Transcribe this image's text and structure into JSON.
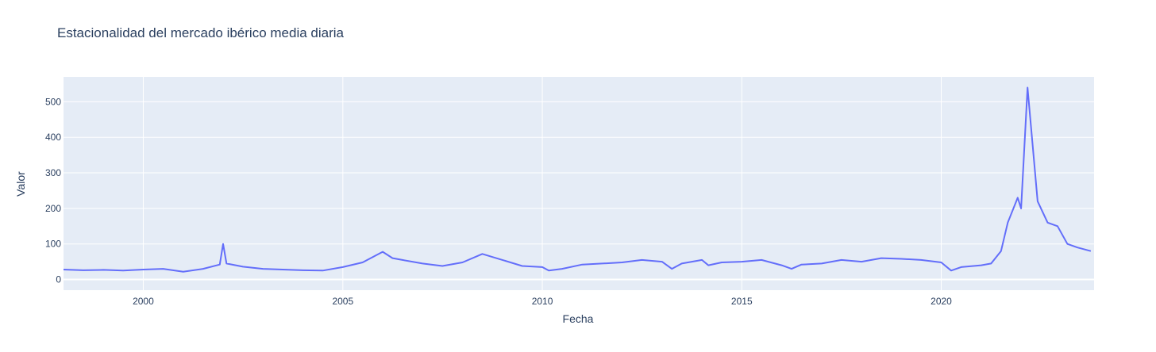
{
  "chart_data": {
    "type": "line",
    "title": "Estacionalidad del mercado ibérico media diaria",
    "xlabel": "Fecha",
    "ylabel": "Valor",
    "xlim": [
      "1998-01-01",
      "2023-10-31"
    ],
    "ylim": [
      -30,
      570
    ],
    "x_ticks": [
      "2000",
      "2005",
      "2010",
      "2015",
      "2020"
    ],
    "y_ticks": [
      0,
      100,
      200,
      300,
      400,
      500
    ],
    "grid": true,
    "legend": "none",
    "colors": {
      "line": "#636efa",
      "plot_bg": "#e5ecf6",
      "grid": "#ffffff",
      "text": "#2a3f5f"
    },
    "series": [
      {
        "x": [
          "1998-01",
          "1998-07",
          "1999-01",
          "1999-07",
          "2000-01",
          "2000-07",
          "2001-01",
          "2001-07",
          "2001-12",
          "2002-01",
          "2002-02",
          "2002-07",
          "2003-01",
          "2003-07",
          "2004-01",
          "2004-07",
          "2005-01",
          "2005-07",
          "2006-01",
          "2006-04",
          "2006-07",
          "2007-01",
          "2007-07",
          "2008-01",
          "2008-07",
          "2009-01",
          "2009-07",
          "2010-01",
          "2010-03",
          "2010-07",
          "2011-01",
          "2011-07",
          "2012-01",
          "2012-07",
          "2013-01",
          "2013-04",
          "2013-07",
          "2014-01",
          "2014-03",
          "2014-07",
          "2015-01",
          "2015-07",
          "2016-01",
          "2016-04",
          "2016-07",
          "2017-01",
          "2017-07",
          "2018-01",
          "2018-07",
          "2019-01",
          "2019-07",
          "2020-01",
          "2020-04",
          "2020-07",
          "2021-01",
          "2021-04",
          "2021-07",
          "2021-09",
          "2021-12",
          "2022-01",
          "2022-03",
          "2022-06",
          "2022-09",
          "2022-12",
          "2023-03",
          "2023-06",
          "2023-10"
        ],
        "y": [
          28,
          26,
          27,
          25,
          28,
          30,
          22,
          30,
          42,
          100,
          45,
          36,
          30,
          28,
          26,
          25,
          35,
          48,
          78,
          60,
          55,
          45,
          38,
          48,
          72,
          55,
          38,
          35,
          25,
          30,
          42,
          45,
          48,
          55,
          50,
          30,
          45,
          55,
          40,
          48,
          50,
          55,
          40,
          30,
          42,
          45,
          55,
          50,
          60,
          58,
          55,
          48,
          25,
          35,
          40,
          45,
          80,
          160,
          230,
          200,
          540,
          220,
          160,
          150,
          100,
          90,
          80
        ]
      }
    ]
  }
}
